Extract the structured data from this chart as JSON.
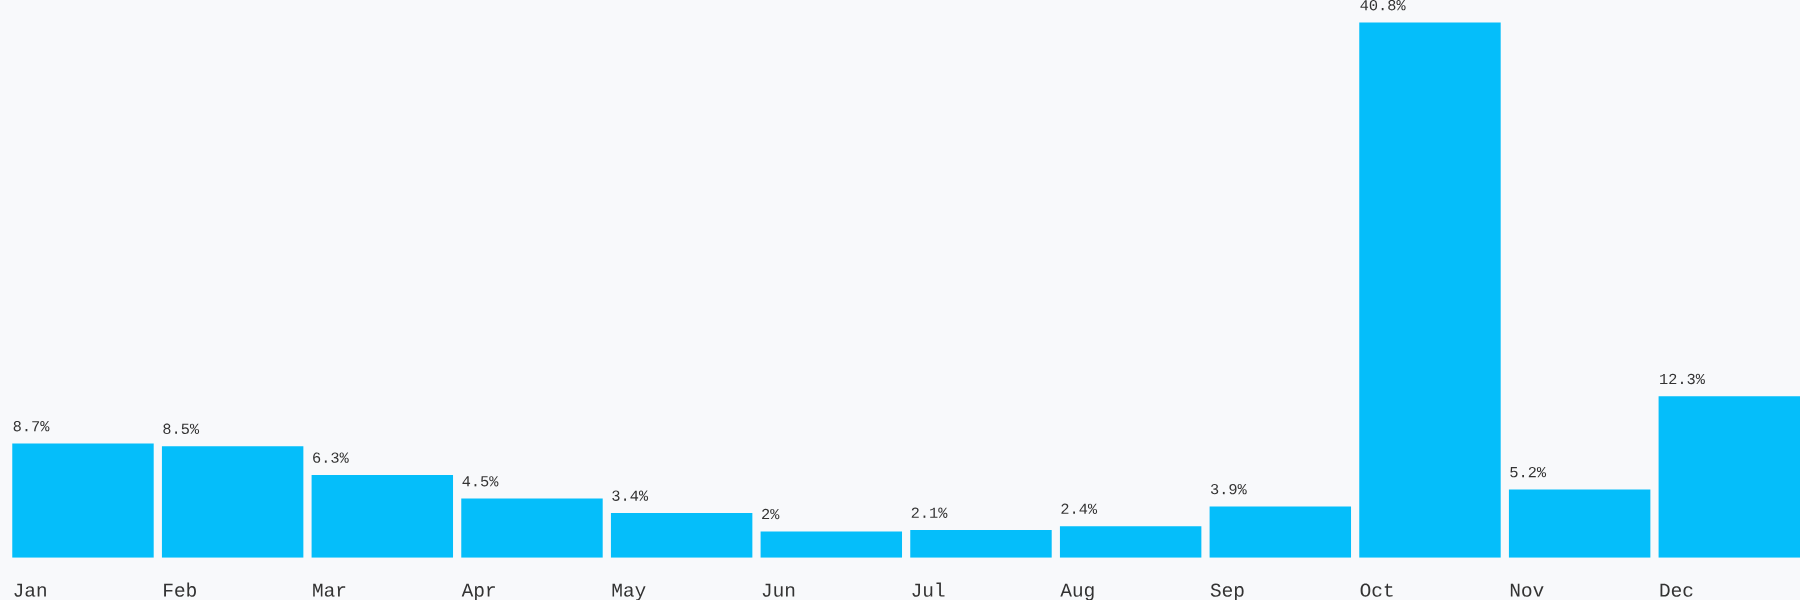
{
  "chart_data": {
    "type": "bar",
    "categories": [
      "Jan",
      "Feb",
      "Mar",
      "Apr",
      "May",
      "Jun",
      "Jul",
      "Aug",
      "Sep",
      "Oct",
      "Nov",
      "Dec"
    ],
    "values": [
      8.7,
      8.5,
      6.3,
      4.5,
      3.4,
      2,
      2.1,
      2.4,
      3.9,
      40.8,
      5.2,
      12.3
    ],
    "value_labels": [
      "8.7%",
      "8.5%",
      "6.3%",
      "4.5%",
      "3.4%",
      "2%",
      "2.1%",
      "2.4%",
      "3.9%",
      "40.8%",
      "5.2%",
      "12.3%"
    ],
    "color": "#05befa"
  }
}
